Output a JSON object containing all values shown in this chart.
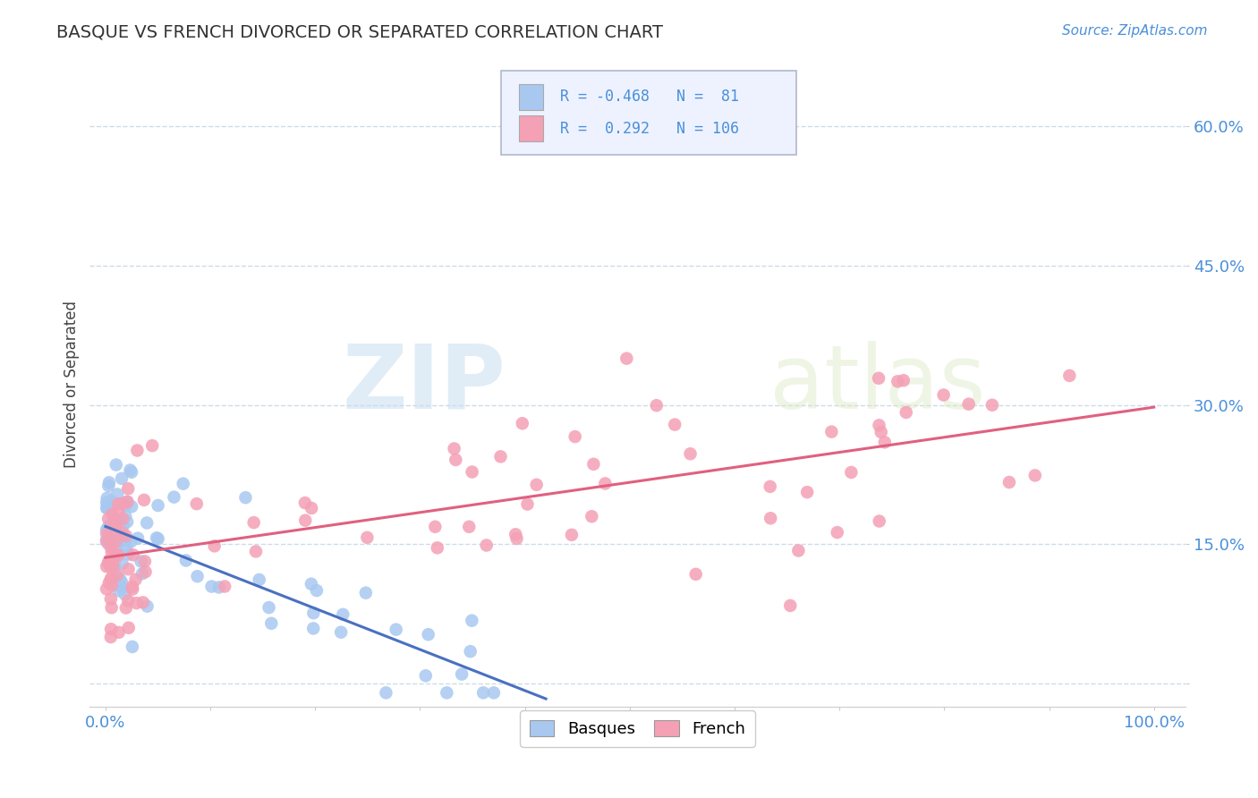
{
  "title": "BASQUE VS FRENCH DIVORCED OR SEPARATED CORRELATION CHART",
  "source_text": "Source: ZipAtlas.com",
  "ylabel": "Divorced or Separated",
  "background_color": "#ffffff",
  "grid_color": "#c8d8e8",
  "title_color": "#333333",
  "tick_color": "#4a90d9",
  "basque_color": "#a8c8f0",
  "french_color": "#f4a0b5",
  "basque_line_color": "#4a70c0",
  "french_line_color": "#e06080",
  "basque_R": -0.468,
  "basque_N": 81,
  "french_R": 0.292,
  "french_N": 106,
  "watermark_zip": "ZIP",
  "watermark_atlas": "atlas",
  "legend_box_facecolor": "#eef2ff",
  "legend_box_edgecolor": "#b0b8cc"
}
